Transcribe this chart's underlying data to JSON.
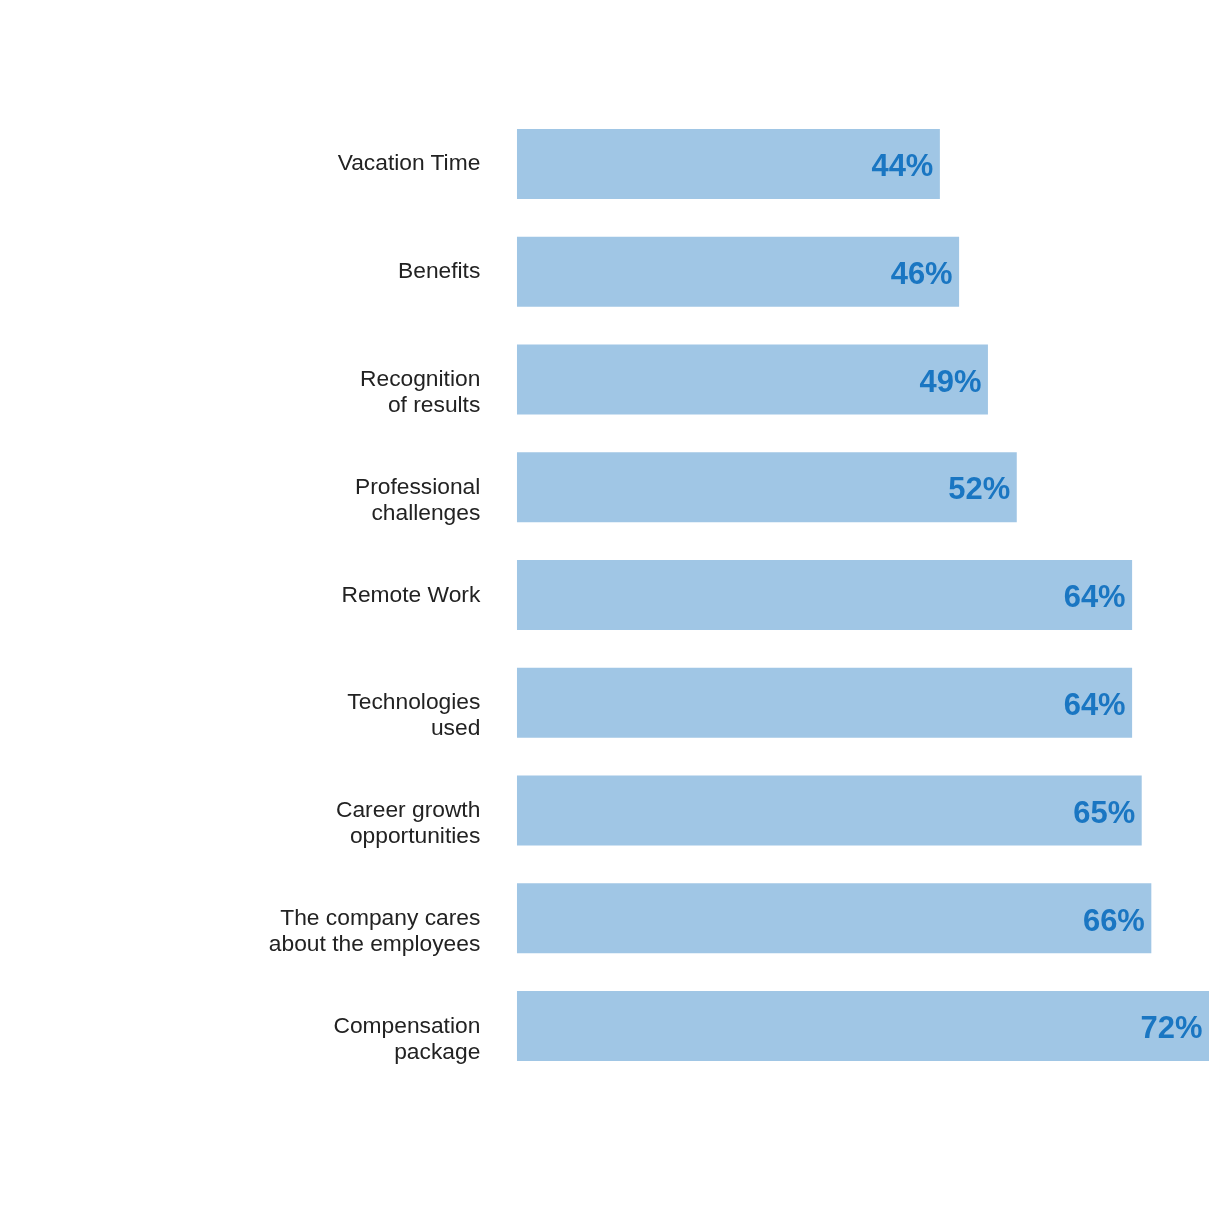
{
  "chart_data": {
    "type": "bar",
    "orientation": "horizontal",
    "categories": [
      "Vacation Time",
      "Benefits",
      "Recognition\nof results",
      "Professional\nchallenges",
      "Remote Work",
      "Technologies\nused",
      "Career growth\nopportunities",
      "The company cares\nabout the employees",
      "Compensation\npackage"
    ],
    "values": [
      44,
      46,
      49,
      52,
      64,
      64,
      65,
      66,
      72
    ],
    "value_labels": [
      "44%",
      "46%",
      "49%",
      "52%",
      "64%",
      "64%",
      "65%",
      "66%",
      "72%"
    ],
    "color": "#a0c6e5",
    "xlim": [
      0,
      72
    ],
    "tick_labels": false
  }
}
